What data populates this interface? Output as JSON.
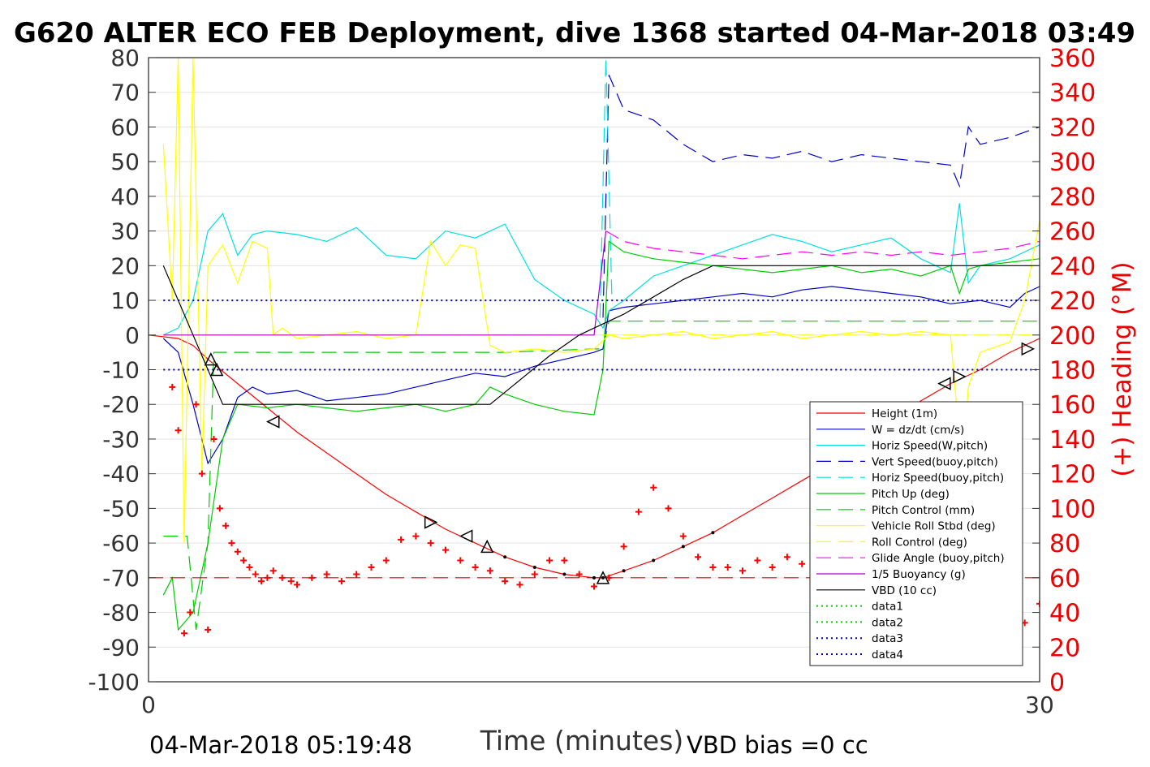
{
  "chart_data": {
    "type": "line",
    "title": "G620 ALTER ECO FEB Deployment, dive 1368 started 04-Mar-2018 03:49",
    "xlabel": "Time (minutes)",
    "ylabel_left": "",
    "ylabel_right": "(+) Heading (°M)",
    "xlim": [
      0,
      30
    ],
    "ylim_left": [
      -100,
      80
    ],
    "ylim_right": [
      0,
      360
    ],
    "x_ticks": [
      "0",
      "30"
    ],
    "y_ticks_left": [
      "80",
      "70",
      "60",
      "50",
      "40",
      "30",
      "20",
      "10",
      "0",
      "-10",
      "-20",
      "-30",
      "-40",
      "-50",
      "-60",
      "-70",
      "-80",
      "-90",
      "-100"
    ],
    "y_ticks_right": [
      "360",
      "340",
      "320",
      "300",
      "280",
      "260",
      "240",
      "220",
      "200",
      "180",
      "160",
      "140",
      "120",
      "100",
      "80",
      "60",
      "40",
      "20",
      "0"
    ],
    "grid": "horizontal",
    "legend_position": "bottom-right",
    "footer_left": "04-Mar-2018 05:19:48",
    "footer_right": "VBD bias =0 cc",
    "series": [
      {
        "name": "Height (1m)",
        "color": "#ff0000",
        "style": "solid",
        "x": [
          0.0,
          1.0,
          1.5,
          2.0,
          3.0,
          4.0,
          5.0,
          6.0,
          7.0,
          8.0,
          9.0,
          10.0,
          11.0,
          12.0,
          13.0,
          14.0,
          15.0,
          15.3,
          16.0,
          17.0,
          18.0,
          19.0,
          20.0,
          21.0,
          22.0,
          23.0,
          24.0,
          25.0,
          26.0,
          27.0,
          28.0,
          29.0,
          30.0
        ],
        "y": [
          0,
          -1,
          -3,
          -7,
          -14,
          -21,
          -28,
          -34,
          -40,
          -46,
          -51,
          -56,
          -60,
          -64,
          -67,
          -69,
          -70,
          -70,
          -68,
          -65,
          -61,
          -57,
          -52,
          -47,
          -42,
          -37,
          -31,
          -25,
          -19,
          -14,
          -10,
          -5,
          -1
        ]
      },
      {
        "name": "W = dz/dt (cm/s)",
        "color": "#0000cc",
        "style": "solid",
        "x": [
          0.5,
          1.0,
          1.5,
          2.0,
          2.5,
          3.0,
          3.5,
          4.0,
          5.0,
          6.0,
          7.0,
          8.0,
          9.0,
          10.0,
          11.0,
          12.0,
          13.0,
          14.0,
          14.5,
          15.0,
          15.3,
          15.5,
          16.0,
          17.0,
          18.0,
          19.0,
          20.0,
          21.0,
          22.0,
          23.0,
          24.0,
          25.0,
          26.0,
          27.0,
          28.0,
          29.0,
          29.5,
          30.0
        ],
        "y": [
          -1,
          -5,
          -20,
          -37,
          -30,
          -18,
          -15,
          -17,
          -16,
          -19,
          -18,
          -17,
          -15,
          -13,
          -11,
          -12,
          -9,
          -7,
          -6,
          -5,
          -4,
          7,
          8,
          9,
          10,
          11,
          12,
          11,
          13,
          14,
          13,
          12,
          11,
          9,
          10,
          8,
          12,
          14
        ]
      },
      {
        "name": "Horiz Speed(W,pitch)",
        "color": "#00e0e0",
        "style": "solid",
        "x": [
          0.5,
          1.0,
          1.5,
          2.0,
          2.5,
          3.0,
          3.5,
          4.0,
          5.0,
          6.0,
          7.0,
          8.0,
          9.0,
          10.0,
          11.0,
          12.0,
          13.0,
          14.0,
          14.5,
          15.0,
          15.3,
          15.5,
          16.0,
          17.0,
          18.0,
          19.0,
          20.0,
          21.0,
          22.0,
          23.0,
          24.0,
          25.0,
          26.0,
          27.0,
          27.3,
          27.6,
          28.0,
          29.0,
          30.0
        ],
        "y": [
          0,
          2,
          10,
          30,
          35,
          23,
          29,
          30,
          29,
          27,
          31,
          23,
          22,
          30,
          28,
          32,
          16,
          10,
          8,
          6,
          2,
          7,
          10,
          17,
          20,
          23,
          26,
          29,
          27,
          24,
          26,
          28,
          22,
          18,
          38,
          15,
          20,
          22,
          26
        ]
      },
      {
        "name": "Vert Speed(buoy,pitch)",
        "color": "#0000cc",
        "style": "dashed",
        "x": [
          15.3,
          15.5,
          16.0,
          17.0,
          18.0,
          19.0,
          20.0,
          21.0,
          22.0,
          23.0,
          24.0,
          25.0,
          26.0,
          27.0,
          27.3,
          27.6,
          28.0,
          29.0,
          30.0
        ],
        "y": [
          5,
          75,
          65,
          62,
          55,
          50,
          52,
          51,
          53,
          50,
          52,
          51,
          50,
          49,
          43,
          60,
          55,
          57,
          60
        ]
      },
      {
        "name": "Horiz Speed(buoy,pitch)",
        "color": "#00e0e0",
        "style": "dashed",
        "x": [
          15.2,
          15.4,
          15.6
        ],
        "y": [
          5,
          80,
          10
        ]
      },
      {
        "name": "Pitch Up (deg)",
        "color": "#00cc00",
        "style": "solid",
        "x": [
          0.5,
          0.8,
          1.0,
          1.5,
          2.0,
          2.5,
          3.0,
          4.0,
          5.0,
          6.0,
          7.0,
          8.0,
          9.0,
          10.0,
          11.0,
          11.5,
          12.0,
          13.0,
          14.0,
          15.0,
          15.3,
          15.5,
          16.0,
          17.0,
          18.0,
          19.0,
          20.0,
          21.0,
          22.0,
          23.0,
          24.0,
          25.0,
          26.0,
          27.0,
          27.3,
          27.6,
          28.0,
          29.0,
          30.0
        ],
        "y": [
          -75,
          -70,
          -85,
          -80,
          -60,
          -30,
          -20,
          -21,
          -20,
          -21,
          -22,
          -21,
          -20,
          -22,
          -20,
          -15,
          -17,
          -20,
          -22,
          -23,
          -10,
          27,
          24,
          22,
          21,
          20,
          19,
          18,
          19,
          20,
          18,
          19,
          17,
          20,
          12,
          19,
          20,
          21,
          22
        ]
      },
      {
        "name": "Pitch Control (mm)",
        "color": "#00cc00",
        "style": "dashed",
        "x": [
          0.5,
          1.0,
          1.3,
          1.6,
          2.0,
          2.2,
          4.0,
          8.0,
          12.0,
          15.0,
          15.3,
          15.5,
          20.0,
          25.0,
          30.0
        ],
        "y": [
          -58,
          -58,
          -58,
          -85,
          -60,
          -5,
          -5,
          -5,
          -5,
          -4,
          -4,
          4,
          4,
          4,
          4
        ]
      },
      {
        "name": "Vehicle Roll Stbd (deg)",
        "color": "#ffff00",
        "style": "solid",
        "x": [
          0.5,
          0.8,
          1.0,
          1.2,
          1.5,
          1.8,
          2.0,
          2.5,
          3.0,
          3.5,
          4.0,
          4.2,
          4.5,
          5.0,
          6.0,
          7.0,
          8.0,
          9.0,
          9.5,
          10.0,
          10.5,
          11.0,
          11.5,
          12.0,
          13.0,
          14.0,
          15.0,
          15.5,
          16.0,
          17.0,
          18.0,
          19.0,
          20.0,
          21.0,
          22.0,
          23.0,
          24.0,
          25.0,
          26.0,
          27.0,
          27.2,
          27.4,
          27.6,
          28.0,
          29.0,
          29.5,
          30.0
        ],
        "y": [
          55,
          10,
          80,
          -60,
          80,
          -40,
          20,
          26,
          15,
          27,
          25,
          0,
          2,
          -1,
          0,
          1,
          -1,
          0,
          27,
          20,
          26,
          25,
          -3,
          -5,
          -4,
          -5,
          -4,
          0,
          -1,
          0,
          1,
          -1,
          0,
          1,
          -1,
          0,
          1,
          0,
          1,
          0,
          -20,
          -40,
          -15,
          -5,
          -2,
          10,
          33
        ]
      },
      {
        "name": "Roll Control (deg)",
        "color": "#ffff00",
        "style": "dashed",
        "x": [
          0.5,
          30.0
        ],
        "y": [
          0,
          0
        ]
      },
      {
        "name": "Glide Angle (buoy,pitch)",
        "color": "#ff00ff",
        "style": "dashed",
        "x": [
          15.4,
          16.0,
          17.0,
          18.0,
          19.0,
          20.0,
          21.0,
          22.0,
          23.0,
          24.0,
          25.0,
          26.0,
          27.0,
          28.0,
          29.0,
          30.0
        ],
        "y": [
          30,
          27,
          25,
          24,
          23,
          22,
          23,
          24,
          23,
          24,
          23,
          24,
          23,
          24,
          25,
          27
        ]
      },
      {
        "name": "1/5 Buoyancy (g)",
        "color": "#aa00cc",
        "style": "solid",
        "x": [
          0.5,
          15.0,
          15.4
        ],
        "y": [
          0,
          0,
          30
        ]
      },
      {
        "name": "VBD (10 cc)",
        "color": "#000000",
        "style": "solid",
        "x": [
          0.5,
          1.5,
          2.0,
          2.5,
          5.0,
          8.0,
          11.0,
          11.5,
          12.5,
          13.5,
          14.5,
          15.0,
          16.0,
          17.0,
          18.0,
          19.0,
          20.0,
          25.0,
          30.0
        ],
        "y": [
          20,
          0,
          -10,
          -20,
          -20,
          -20,
          -20,
          -20,
          -13,
          -6,
          0,
          2,
          6,
          11,
          16,
          20,
          20,
          20,
          20
        ]
      },
      {
        "name": "data1",
        "color": "#00cc00",
        "style": "dotted",
        "x": [],
        "y": []
      },
      {
        "name": "data2",
        "color": "#00cc00",
        "style": "dotted",
        "x": [],
        "y": []
      },
      {
        "name": "data3",
        "color": "#0000aa",
        "style": "dotted",
        "x": [
          0.5,
          30.0
        ],
        "y": [
          10,
          10
        ]
      },
      {
        "name": "data4",
        "color": "#0000aa",
        "style": "dotted",
        "x": [
          0.5,
          30.0
        ],
        "y": [
          -10,
          -10
        ]
      }
    ],
    "heading_series": {
      "color": "#ff0000",
      "x": [
        0.8,
        1.0,
        1.2,
        1.4,
        1.6,
        1.8,
        2.0,
        2.2,
        2.4,
        2.6,
        2.8,
        3.0,
        3.2,
        3.4,
        3.6,
        3.8,
        4.0,
        4.2,
        4.5,
        4.8,
        5.0,
        5.5,
        6.0,
        6.5,
        7.0,
        7.5,
        8.0,
        8.5,
        9.0,
        9.5,
        10.0,
        10.5,
        11.0,
        11.5,
        12.0,
        12.5,
        13.0,
        13.5,
        14.0,
        14.5,
        15.0,
        15.5,
        16.0,
        16.5,
        17.0,
        17.5,
        18.0,
        18.5,
        19.0,
        19.5,
        20.0,
        20.5,
        21.0,
        21.5,
        22.0,
        22.5,
        23.0,
        23.5,
        24.0,
        24.5,
        25.0,
        25.5,
        26.0,
        26.2,
        26.5,
        27.0,
        27.2,
        27.4,
        27.6,
        27.8,
        28.0,
        28.5,
        29.0,
        29.5,
        30.0
      ],
      "y": [
        170,
        145,
        28,
        40,
        160,
        120,
        30,
        140,
        100,
        90,
        80,
        75,
        70,
        66,
        62,
        58,
        60,
        64,
        60,
        58,
        56,
        60,
        62,
        58,
        62,
        66,
        70,
        82,
        84,
        80,
        76,
        70,
        66,
        64,
        58,
        56,
        62,
        70,
        70,
        62,
        55,
        60,
        78,
        98,
        112,
        100,
        84,
        72,
        66,
        66,
        64,
        70,
        66,
        72,
        68,
        60,
        66,
        70,
        72,
        68,
        74,
        72,
        74,
        80,
        85,
        75,
        70,
        56,
        40,
        30,
        28,
        24,
        26,
        34,
        45
      ]
    },
    "markers": {
      "color": "#000000",
      "points": [
        {
          "x": 2.1,
          "y": -7,
          "shape": "up"
        },
        {
          "x": 2.3,
          "y": -10,
          "shape": "up"
        },
        {
          "x": 4.2,
          "y": -25,
          "shape": "left"
        },
        {
          "x": 9.5,
          "y": -54,
          "shape": "right"
        },
        {
          "x": 10.7,
          "y": -58,
          "shape": "left"
        },
        {
          "x": 11.4,
          "y": -61,
          "shape": "up"
        },
        {
          "x": 15.3,
          "y": -70,
          "shape": "up"
        },
        {
          "x": 26.8,
          "y": -14,
          "shape": "left"
        },
        {
          "x": 27.3,
          "y": -12,
          "shape": "right"
        },
        {
          "x": 29.6,
          "y": -4,
          "shape": "right"
        }
      ]
    }
  }
}
